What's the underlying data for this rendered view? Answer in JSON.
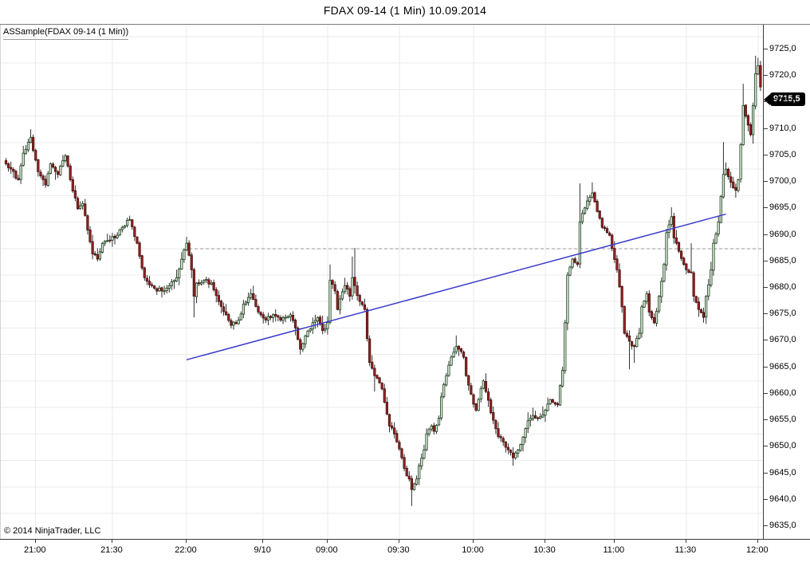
{
  "window": {
    "title": "FDAX 09-14 (1 Min)  10.09.2014"
  },
  "chart": {
    "panel_label": "ASSample(FDAX 09-14 (1 Min))",
    "copyright": "© 2014 NinjaTrader, LLC",
    "last_price_label": "9715,5"
  },
  "chart_data": {
    "type": "candlestick",
    "instrument": "FDAX 09-14",
    "interval": "1 Min",
    "date": "10.09.2014",
    "title": "FDAX 09-14 (1 Min)  10.09.2014",
    "grid": true,
    "legend": "none",
    "bars_total": 306,
    "y_axis": {
      "min": 9635,
      "max": 9725,
      "tick": 5,
      "labels": [
        "9725,0",
        "9720,0",
        "9715,0",
        "9710,0",
        "9705,0",
        "9700,0",
        "9695,0",
        "9690,0",
        "9685,0",
        "9680,0",
        "9675,0",
        "9670,0",
        "9665,0",
        "9660,0",
        "9655,0",
        "9650,0",
        "9645,0",
        "9640,0",
        "9635,0"
      ]
    },
    "x_axis": {
      "labels": [
        "21:00",
        "21:30",
        "22:00",
        "9/10",
        "09:00",
        "09:30",
        "10:00",
        "10:30",
        "11:00",
        "11:30",
        "12:00"
      ],
      "bar_index": [
        12,
        43,
        73,
        104,
        130,
        159,
        189,
        218,
        246,
        275,
        304
      ]
    },
    "close_waypoints": [
      [
        0,
        9701
      ],
      [
        2,
        9700
      ],
      [
        5,
        9698
      ],
      [
        7,
        9703
      ],
      [
        10,
        9706
      ],
      [
        13,
        9699.5
      ],
      [
        16,
        9697
      ],
      [
        18,
        9701
      ],
      [
        21,
        9699
      ],
      [
        24,
        9702.5
      ],
      [
        26,
        9698
      ],
      [
        29,
        9692.5
      ],
      [
        31,
        9693.5
      ],
      [
        33,
        9688.5
      ],
      [
        35,
        9684
      ],
      [
        37,
        9683
      ],
      [
        39,
        9686
      ],
      [
        41,
        9686.5
      ],
      [
        45,
        9687.5
      ],
      [
        47,
        9689
      ],
      [
        50,
        9690.5
      ],
      [
        53,
        9686
      ],
      [
        56,
        9679.5
      ],
      [
        60,
        9677.5
      ],
      [
        63,
        9677
      ],
      [
        66,
        9678
      ],
      [
        69,
        9679.5
      ],
      [
        71,
        9683
      ],
      [
        73,
        9686
      ],
      [
        75,
        9681
      ],
      [
        76,
        9676
      ],
      [
        77,
        9678.5
      ],
      [
        80,
        9679
      ],
      [
        83,
        9678.5
      ],
      [
        86,
        9675
      ],
      [
        89,
        9672.5
      ],
      [
        91,
        9670.5
      ],
      [
        94,
        9671.5
      ],
      [
        96,
        9674.5
      ],
      [
        99,
        9676.5
      ],
      [
        102,
        9673
      ],
      [
        105,
        9671.5
      ],
      [
        108,
        9672.5
      ],
      [
        111,
        9671.5
      ],
      [
        115,
        9672.5
      ],
      [
        117,
        9670
      ],
      [
        119,
        9666
      ],
      [
        121,
        9668.5
      ],
      [
        124,
        9671
      ],
      [
        126,
        9672
      ],
      [
        128,
        9669.5
      ],
      [
        130,
        9671
      ],
      [
        131,
        9679
      ],
      [
        133,
        9677
      ],
      [
        134,
        9673.5
      ],
      [
        135,
        9675.5
      ],
      [
        137,
        9678
      ],
      [
        139,
        9676
      ],
      [
        140,
        9679.5
      ],
      [
        141,
        9678
      ],
      [
        143,
        9675
      ],
      [
        145,
        9673.5
      ],
      [
        146,
        9668
      ],
      [
        147,
        9663.5
      ],
      [
        149,
        9661
      ],
      [
        152,
        9658.5
      ],
      [
        153,
        9656
      ],
      [
        155,
        9651.5
      ],
      [
        157,
        9650
      ],
      [
        158,
        9648.5
      ],
      [
        160,
        9645.5
      ],
      [
        161,
        9643.5
      ],
      [
        163,
        9641.5
      ],
      [
        164,
        9639.5
      ],
      [
        166,
        9641.5
      ],
      [
        167,
        9644
      ],
      [
        169,
        9647
      ],
      [
        170,
        9650
      ],
      [
        172,
        9651.5
      ],
      [
        173,
        9650.5
      ],
      [
        175,
        9653
      ],
      [
        176,
        9657
      ],
      [
        178,
        9661
      ],
      [
        180,
        9664.5
      ],
      [
        182,
        9666.5
      ],
      [
        183,
        9666
      ],
      [
        185,
        9664.5
      ],
      [
        186,
        9661
      ],
      [
        188,
        9657.5
      ],
      [
        190,
        9654.5
      ],
      [
        191,
        9656.5
      ],
      [
        193,
        9660
      ],
      [
        194,
        9658
      ],
      [
        196,
        9654
      ],
      [
        198,
        9651
      ],
      [
        199,
        9649.5
      ],
      [
        201,
        9648.5
      ],
      [
        203,
        9647
      ],
      [
        205,
        9645.5
      ],
      [
        208,
        9648
      ],
      [
        211,
        9652.5
      ],
      [
        213,
        9653.5
      ],
      [
        215,
        9653
      ],
      [
        218,
        9654.5
      ],
      [
        220,
        9656.5
      ],
      [
        223,
        9655.5
      ],
      [
        225,
        9662
      ],
      [
        226,
        9671
      ],
      [
        227,
        9680
      ],
      [
        229,
        9683
      ],
      [
        231,
        9682
      ],
      [
        232,
        9690
      ],
      [
        235,
        9694
      ],
      [
        237,
        9695.5
      ],
      [
        239,
        9692
      ],
      [
        241,
        9689
      ],
      [
        244,
        9687.5
      ],
      [
        245,
        9685
      ],
      [
        247,
        9681
      ],
      [
        249,
        9674
      ],
      [
        250,
        9669
      ],
      [
        252,
        9667.5
      ],
      [
        254,
        9666.5
      ],
      [
        256,
        9669
      ],
      [
        257,
        9674
      ],
      [
        259,
        9676.5
      ],
      [
        260,
        9673
      ],
      [
        262,
        9671
      ],
      [
        264,
        9676
      ],
      [
        266,
        9682
      ],
      [
        267,
        9688
      ],
      [
        269,
        9691
      ],
      [
        270,
        9687
      ],
      [
        272,
        9684.5
      ],
      [
        274,
        9682
      ],
      [
        275,
        9681
      ],
      [
        277,
        9680.5
      ],
      [
        278,
        9676
      ],
      [
        280,
        9673.5
      ],
      [
        282,
        9672
      ],
      [
        283,
        9676
      ],
      [
        285,
        9681
      ],
      [
        286,
        9686
      ],
      [
        288,
        9690
      ],
      [
        290,
        9699
      ],
      [
        291,
        9700
      ],
      [
        293,
        9697.5
      ],
      [
        295,
        9696
      ],
      [
        296,
        9698
      ],
      [
        298,
        9712
      ],
      [
        299,
        9710
      ],
      [
        301,
        9706.5
      ],
      [
        302,
        9712
      ],
      [
        303,
        9718
      ],
      [
        304,
        9719.5
      ],
      [
        305,
        9715.5
      ]
    ],
    "forced_wicks": [
      {
        "bar": 10,
        "high": 9707.5
      },
      {
        "bar": 50,
        "high": 9691.2
      },
      {
        "bar": 73,
        "high": 9687.2
      },
      {
        "bar": 76,
        "low": 9672.0
      },
      {
        "bar": 99,
        "high": 9677.4
      },
      {
        "bar": 119,
        "low": 9665.0
      },
      {
        "bar": 131,
        "high": 9682.0
      },
      {
        "bar": 140,
        "high": 9683.5
      },
      {
        "bar": 141,
        "high": 9685.1
      },
      {
        "bar": 149,
        "low": 9658.0
      },
      {
        "bar": 164,
        "low": 9636.4
      },
      {
        "bar": 182,
        "high": 9668.6
      },
      {
        "bar": 205,
        "low": 9644.0
      },
      {
        "bar": 232,
        "high": 9697.3
      },
      {
        "bar": 237,
        "high": 9697.5
      },
      {
        "bar": 252,
        "low": 9662.2
      },
      {
        "bar": 254,
        "low": 9663.4
      },
      {
        "bar": 269,
        "high": 9692.8
      },
      {
        "bar": 277,
        "high": 9686.0
      },
      {
        "bar": 282,
        "low": 9671.0
      },
      {
        "bar": 290,
        "high": 9705.1
      },
      {
        "bar": 295,
        "low": 9694.6
      },
      {
        "bar": 298,
        "high": 9716.1
      },
      {
        "bar": 303,
        "high": 9721.4
      },
      {
        "bar": 304,
        "high": 9721.0
      }
    ],
    "dashed_level": {
      "price": 9685,
      "from_bar": 74
    },
    "trendline": {
      "from_bar": 73,
      "from_price": 9664.0,
      "to_bar": 291,
      "to_price": 9691.5
    },
    "last_price": 9715.5,
    "colors": {
      "up_fill": "#e2ece2",
      "up_border": "#143d14",
      "down_fill": "#962424",
      "down_border": "#4a0d0d",
      "wick": "#1c1c1c",
      "grid": "#ebebeb",
      "dashed_line": "#9a9a9a",
      "trendline": "#3c3ccc",
      "badge_bg": "#000000",
      "badge_text": "#ffffff",
      "background": "#ffffff"
    }
  }
}
